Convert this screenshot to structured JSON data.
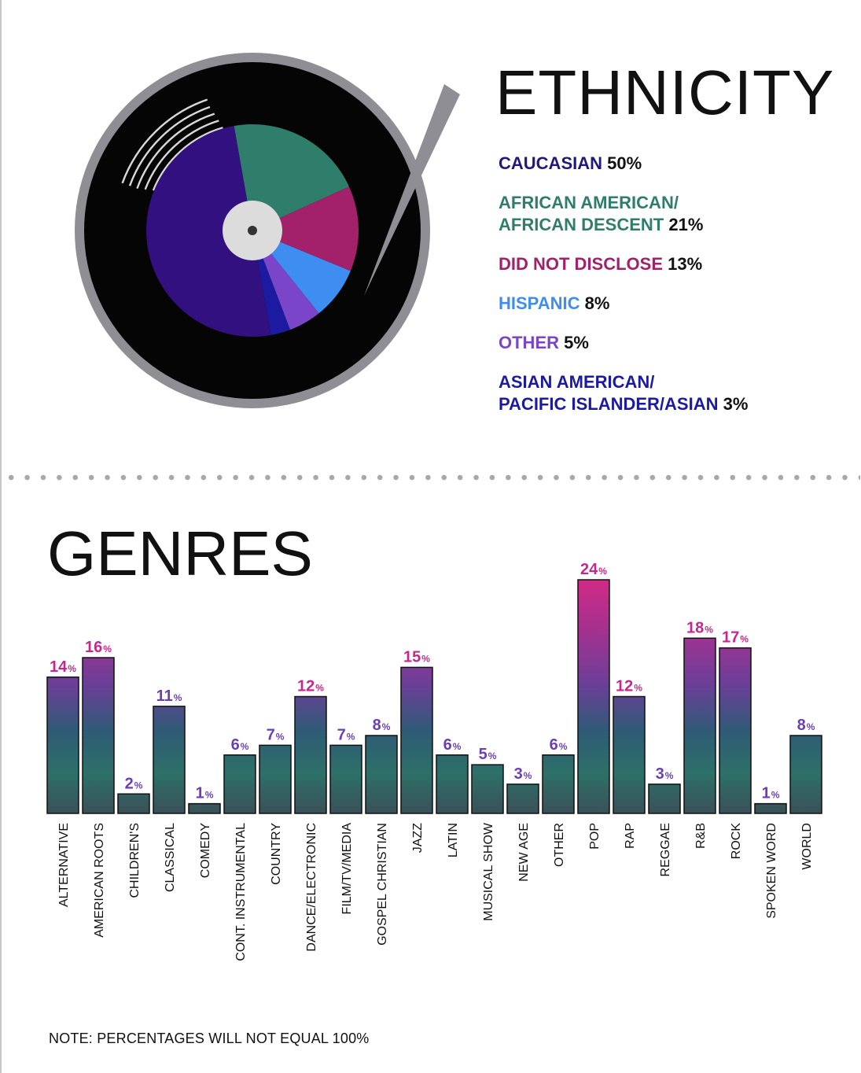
{
  "ethnicity": {
    "title": "ETHNICITY",
    "items": [
      {
        "label": "CAUCASIAN",
        "pct": "50%",
        "color": "#1f1a7a"
      },
      {
        "label": "AFRICAN AMERICAN/\nAFRICAN DESCENT",
        "pct": "21%",
        "color": "#2f7d6b"
      },
      {
        "label": "DID NOT DISCLOSE",
        "pct": "13%",
        "color": "#a3216b"
      },
      {
        "label": "HISPANIC",
        "pct": "8%",
        "color": "#3d8ef0"
      },
      {
        "label": "OTHER",
        "pct": "5%",
        "color": "#7a45c8"
      },
      {
        "label": "ASIAN AMERICAN/\nPACIFIC ISLANDER/ASIAN",
        "pct": "3%",
        "color": "#1b1aa0"
      }
    ]
  },
  "chart_data": {
    "type": "bar",
    "title": "GENRES",
    "categories": [
      "ALTERNATIVE",
      "AMERICAN ROOTS",
      "CHILDREN'S",
      "CLASSICAL",
      "COMEDY",
      "CONT. INSTRUMENTAL",
      "COUNTRY",
      "DANCE/ELECTRONIC",
      "FILM/TV/MEDIA",
      "GOSPEL CHRISTIAN",
      "JAZZ",
      "LATIN",
      "MUSICAL SHOW",
      "NEW AGE",
      "OTHER",
      "POP",
      "RAP",
      "REGGAE",
      "R&B",
      "ROCK",
      "SPOKEN WORD",
      "WORLD"
    ],
    "values": [
      14,
      16,
      2,
      11,
      1,
      6,
      7,
      12,
      7,
      8,
      15,
      6,
      5,
      3,
      6,
      24,
      12,
      3,
      18,
      17,
      1,
      8
    ],
    "value_suffix": "%",
    "ylim": [
      0,
      24
    ],
    "grid": false,
    "label_color_high": "#c4288c",
    "label_color_low": "#6a3fb5"
  },
  "record": {
    "slices": [
      {
        "name": "AFRICAN AMERICAN/AFRICAN DESCENT",
        "value": 21,
        "color": "#2f7d6b"
      },
      {
        "name": "DID NOT DISCLOSE",
        "value": 13,
        "color": "#a3216b"
      },
      {
        "name": "HISPANIC",
        "value": 8,
        "color": "#3d8ef0"
      },
      {
        "name": "OTHER",
        "value": 5,
        "color": "#7a45c8"
      },
      {
        "name": "ASIAN AMERICAN/PACIFIC ISLANDER/ASIAN",
        "value": 3,
        "color": "#1b1aa0"
      },
      {
        "name": "CAUCASIAN",
        "value": 50,
        "color": "#321080"
      }
    ]
  },
  "note": "NOTE: PERCENTAGES WILL NOT EQUAL 100%"
}
